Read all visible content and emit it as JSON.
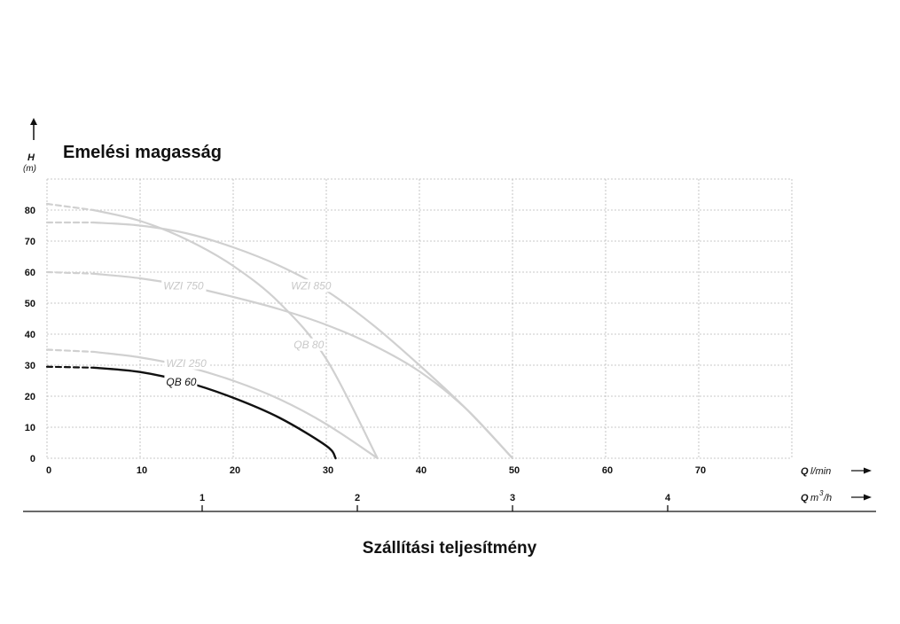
{
  "chart_data": {
    "type": "line",
    "title": "Emelési magasság",
    "xlabel": "Szállítási teljesítmény",
    "ylabel_symbol": "H",
    "ylabel_unit": "(m)",
    "x_axis_lmin": {
      "symbol": "Q",
      "unit": "l/min",
      "ticks": [
        0,
        10,
        20,
        30,
        40,
        50,
        60,
        70
      ],
      "range": [
        0,
        80
      ]
    },
    "x_axis_m3h": {
      "symbol": "Q",
      "unit_base": "m",
      "unit_sup": "3",
      "unit_tail": "/h",
      "ticks": [
        1,
        2,
        3,
        4
      ]
    },
    "y_axis": {
      "ticks": [
        0,
        10,
        20,
        30,
        40,
        50,
        60,
        70,
        80
      ],
      "range": [
        0,
        90
      ]
    },
    "grid": true,
    "series": [
      {
        "name": "QB 60",
        "color": "#111111",
        "x": [
          0,
          5,
          10,
          15,
          20,
          25,
          30,
          31
        ],
        "y": [
          29.5,
          29.2,
          27.8,
          24.5,
          19.5,
          13,
          4,
          0
        ]
      },
      {
        "name": "WZI 250",
        "color": "#d0d0d0",
        "x": [
          0,
          5,
          10,
          15,
          20,
          25,
          30,
          35.5
        ],
        "y": [
          35,
          34.3,
          32.5,
          29.5,
          25,
          19,
          11,
          0
        ]
      },
      {
        "name": "QB 80",
        "color": "#d0d0d0",
        "x": [
          0,
          5,
          10,
          15,
          20,
          25,
          30,
          35.5
        ],
        "y": [
          82,
          80,
          76.5,
          70.5,
          62,
          50,
          32,
          0
        ]
      },
      {
        "name": "WZI 750",
        "color": "#d0d0d0",
        "x": [
          0,
          5,
          10,
          15,
          20,
          25,
          30,
          35,
          40,
          45,
          50
        ],
        "y": [
          60,
          59.5,
          58,
          55.5,
          52,
          48,
          43,
          36.5,
          28,
          16,
          0
        ]
      },
      {
        "name": "WZI 850",
        "color": "#d0d0d0",
        "x": [
          0,
          5,
          10,
          15,
          20,
          25,
          30,
          35,
          40,
          45,
          50
        ],
        "y": [
          76,
          76,
          75,
          72.5,
          68,
          62,
          54,
          43,
          30,
          16,
          0
        ]
      }
    ]
  }
}
